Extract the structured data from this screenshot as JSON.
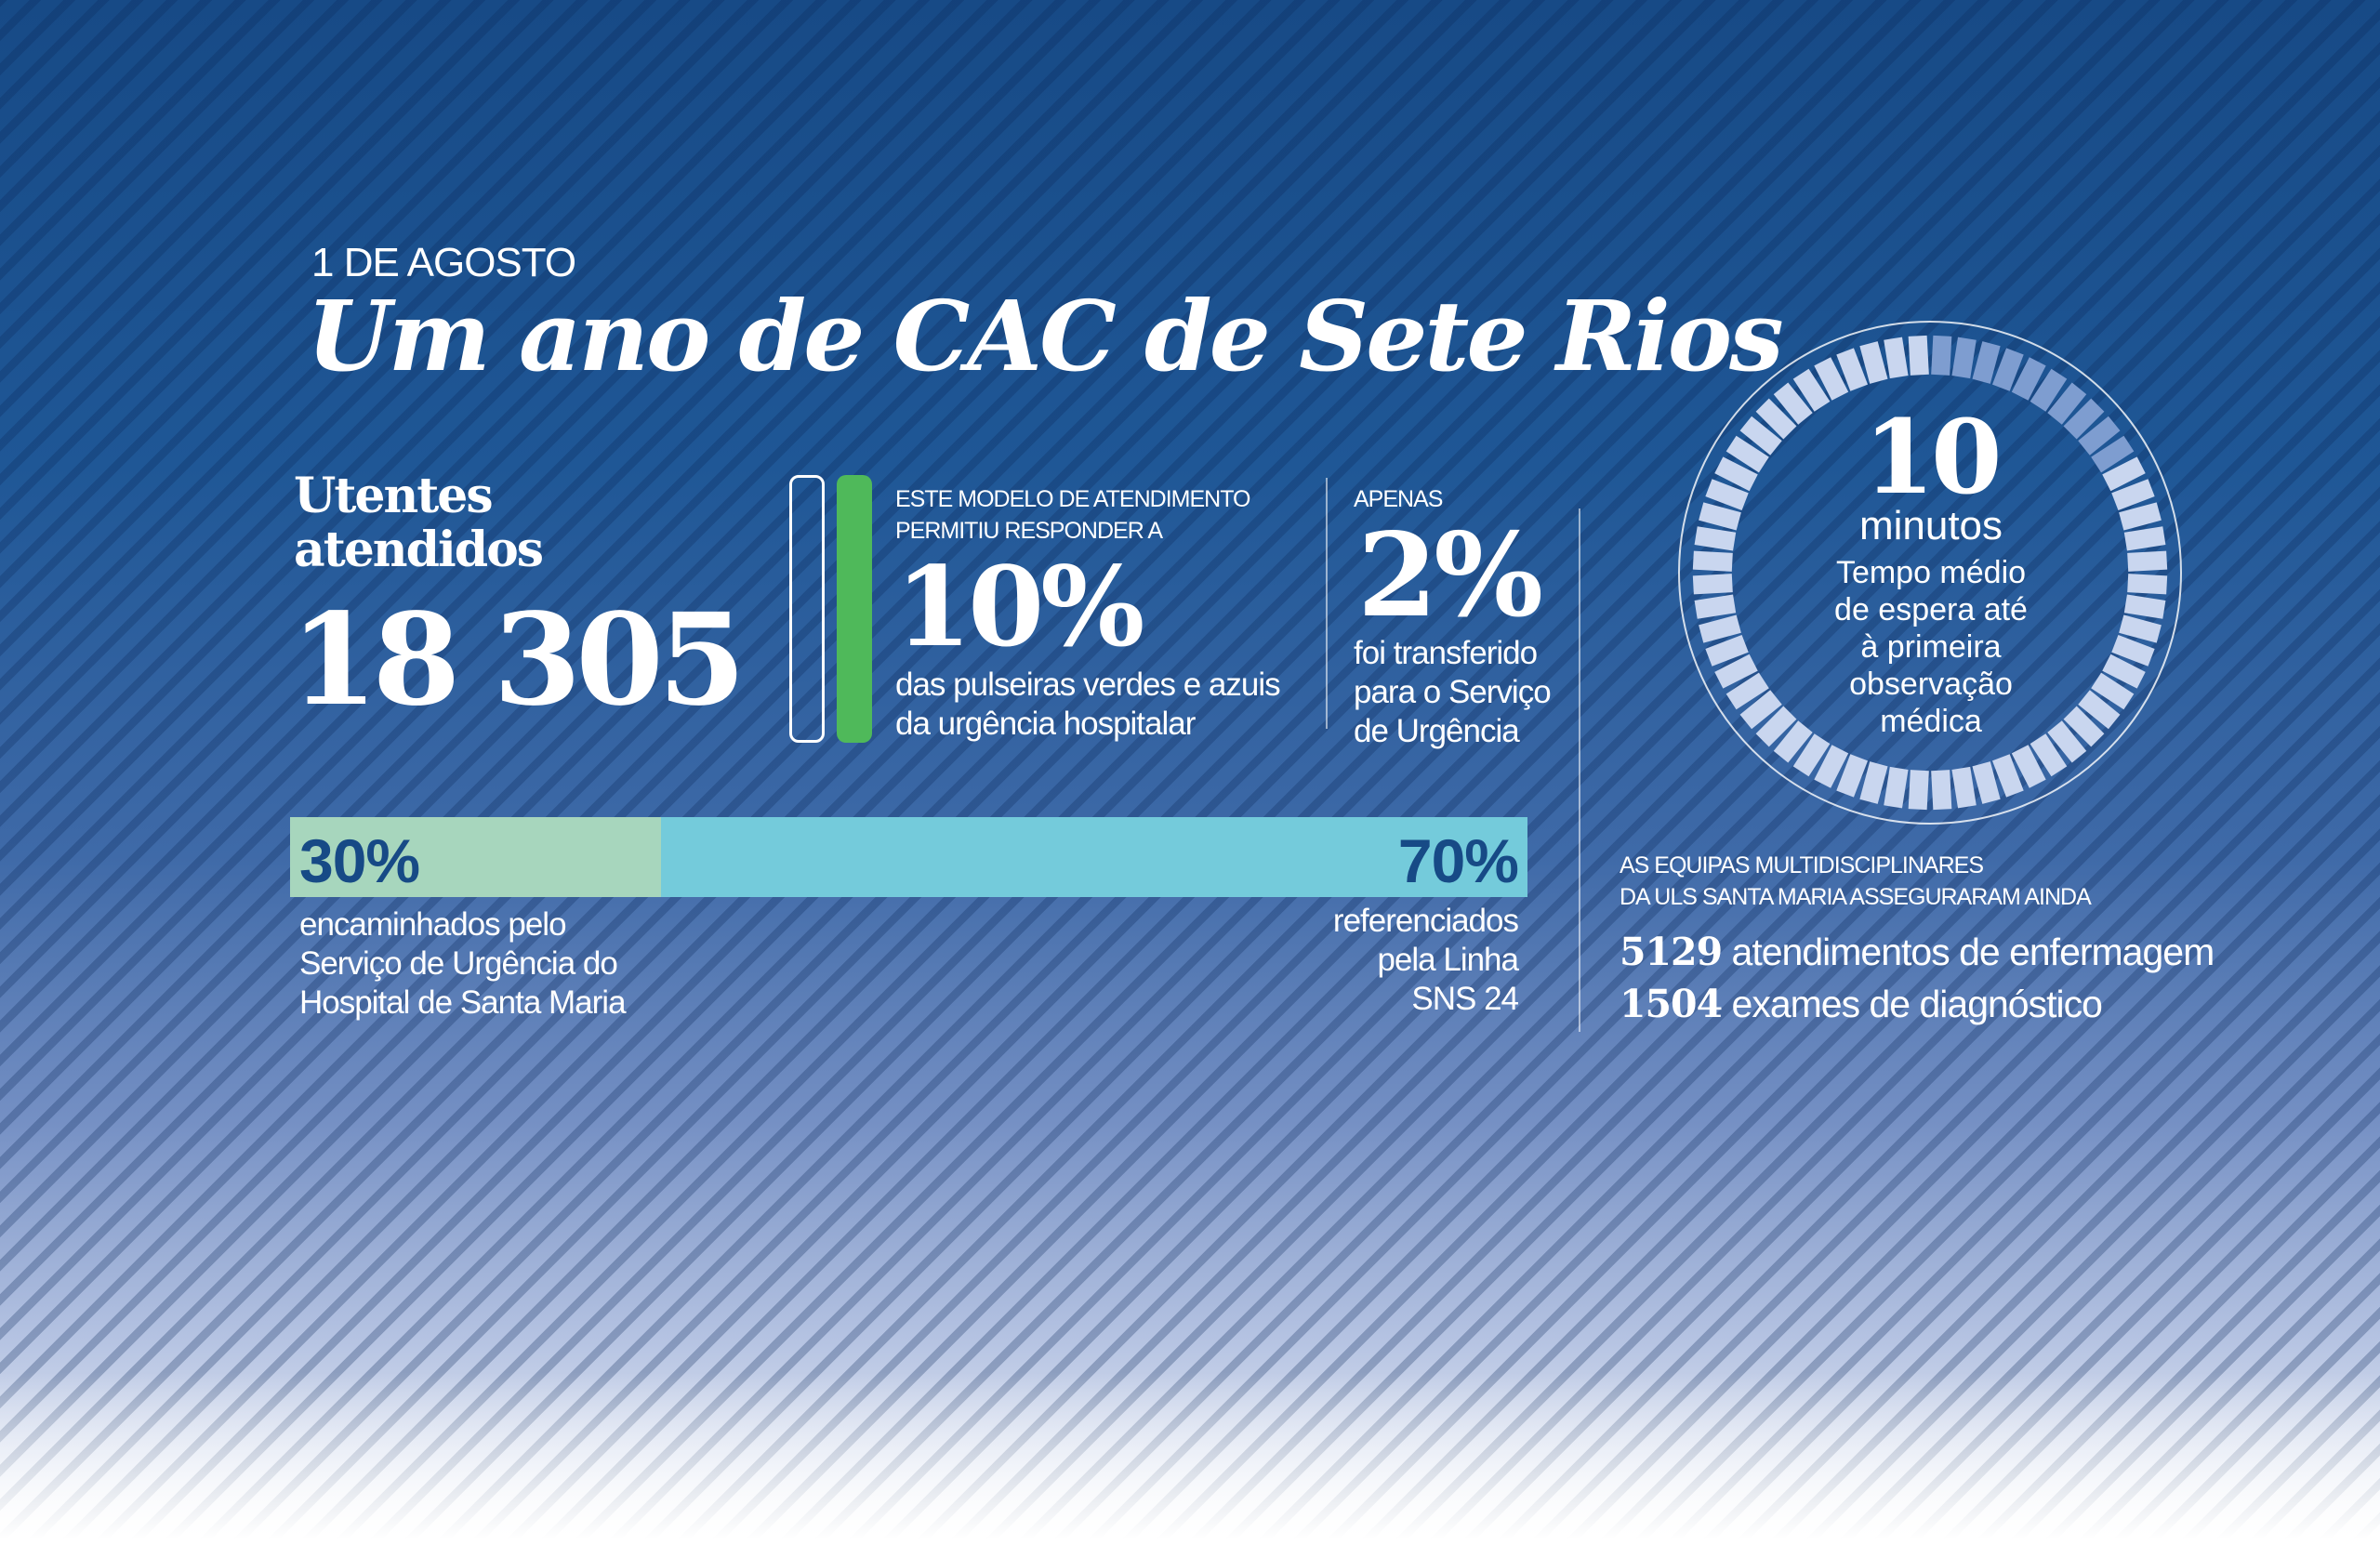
{
  "header": {
    "date": "1 DE AGOSTO",
    "title": "Um ano de CAC de Sete Rios"
  },
  "patients": {
    "label_line1": "Utentes",
    "label_line2": "atendidos",
    "value": "18 305"
  },
  "response": {
    "intro_line1": "ESTE MODELO DE ATENDIMENTO",
    "intro_line2": "PERMITIU RESPONDER A",
    "value": "10%",
    "desc_line1": "das pulseiras verdes e azuis",
    "desc_line2": "da urgência hospitalar",
    "fill_percent": 10
  },
  "transfer": {
    "intro": "APENAS",
    "value": "2%",
    "desc_line1": "foi transferido",
    "desc_line2": "para o Serviço",
    "desc_line3": "de Urgência"
  },
  "wait": {
    "value": "10",
    "unit": "minutos",
    "desc_line1": "Tempo médio",
    "desc_line2": "de espera até",
    "desc_line3": "à primeira",
    "desc_line4": "observação",
    "desc_line5": "médica",
    "highlighted_of_60": 10
  },
  "referral": {
    "a_value": "30%",
    "a_percent": 30,
    "a_line1": "encaminhados pelo",
    "a_line2": "Serviço de Urgência do",
    "a_line3": "Hospital de Santa Maria",
    "b_value": "70%",
    "b_percent": 70,
    "b_line1": "referenciados",
    "b_line2": "pela Linha",
    "b_line3": "SNS 24"
  },
  "teams": {
    "intro_line1": "AS EQUIPAS MULTIDISCIPLINARES",
    "intro_line2": "DA ULS SANTA MARIA ASSEGURARAM AINDA",
    "stat1_value": "5129",
    "stat1_label": "atendimentos de enfermagem",
    "stat2_value": "1504",
    "stat2_label": "exames de diagnóstico"
  },
  "colors": {
    "background": "#174a86",
    "green": "#4fb95a",
    "bar_a": "#a7d6bd",
    "bar_b": "#74cbdb",
    "ring_light": "#c9d6ef",
    "ring_dark": "#7e9dd0"
  }
}
